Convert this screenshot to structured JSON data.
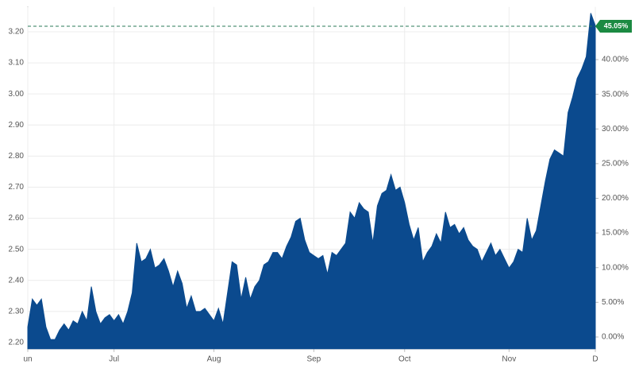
{
  "chart_data": {
    "type": "area",
    "categories": [
      "un",
      null,
      null,
      null,
      null,
      null,
      null,
      null,
      null,
      null,
      null,
      null,
      null,
      null,
      null,
      null,
      null,
      null,
      null,
      "Jul",
      null,
      null,
      null,
      null,
      null,
      null,
      null,
      null,
      null,
      null,
      null,
      null,
      null,
      null,
      null,
      null,
      null,
      null,
      null,
      null,
      null,
      "Aug",
      null,
      null,
      null,
      null,
      null,
      null,
      null,
      null,
      null,
      null,
      null,
      null,
      null,
      null,
      null,
      null,
      null,
      null,
      null,
      null,
      null,
      "Sep",
      null,
      null,
      null,
      null,
      null,
      null,
      null,
      null,
      null,
      null,
      null,
      null,
      null,
      null,
      null,
      null,
      null,
      null,
      null,
      "Oct",
      null,
      null,
      null,
      null,
      null,
      null,
      null,
      null,
      null,
      null,
      null,
      null,
      null,
      null,
      null,
      null,
      null,
      null,
      null,
      null,
      null,
      null,
      "Nov",
      null,
      null,
      null,
      null,
      null,
      null,
      null,
      null,
      null,
      null,
      null,
      null,
      null,
      null,
      null,
      null,
      null,
      null,
      "D"
    ],
    "values": [
      2.25,
      2.34,
      2.32,
      2.34,
      2.25,
      2.21,
      2.21,
      2.24,
      2.26,
      2.24,
      2.27,
      2.26,
      2.3,
      2.27,
      2.38,
      2.3,
      2.26,
      2.28,
      2.29,
      2.27,
      2.29,
      2.26,
      2.3,
      2.36,
      2.52,
      2.46,
      2.47,
      2.5,
      2.44,
      2.45,
      2.47,
      2.43,
      2.38,
      2.43,
      2.39,
      2.31,
      2.35,
      2.3,
      2.3,
      2.31,
      2.29,
      2.27,
      2.31,
      2.26,
      2.36,
      2.46,
      2.45,
      2.34,
      2.41,
      2.34,
      2.38,
      2.4,
      2.45,
      2.46,
      2.49,
      2.49,
      2.47,
      2.51,
      2.54,
      2.59,
      2.6,
      2.53,
      2.49,
      2.48,
      2.47,
      2.48,
      2.42,
      2.49,
      2.48,
      2.5,
      2.52,
      2.62,
      2.6,
      2.65,
      2.63,
      2.62,
      2.52,
      2.64,
      2.68,
      2.69,
      2.74,
      2.69,
      2.7,
      2.65,
      2.58,
      2.53,
      2.57,
      2.46,
      2.49,
      2.51,
      2.55,
      2.52,
      2.62,
      2.57,
      2.58,
      2.55,
      2.57,
      2.53,
      2.51,
      2.5,
      2.46,
      2.49,
      2.52,
      2.48,
      2.5,
      2.47,
      2.44,
      2.46,
      2.5,
      2.49,
      2.6,
      2.53,
      2.56,
      2.64,
      2.72,
      2.79,
      2.82,
      2.81,
      2.8,
      2.94,
      2.99,
      3.05,
      3.08,
      3.12,
      3.26,
      3.22
    ],
    "color": "#0b4a8e",
    "ylim": [
      2.18,
      3.28
    ],
    "yticks": [
      {
        "value": 2.2,
        "label": "2.20"
      },
      {
        "value": 2.3,
        "label": "2.30"
      },
      {
        "value": 2.4,
        "label": "2.40"
      },
      {
        "value": 2.5,
        "label": "2.50"
      },
      {
        "value": 2.6,
        "label": "2.60"
      },
      {
        "value": 2.7,
        "label": "2.70"
      },
      {
        "value": 2.8,
        "label": "2.80"
      },
      {
        "value": 2.9,
        "label": "2.90"
      },
      {
        "value": 3.0,
        "label": "3.00"
      },
      {
        "value": 3.1,
        "label": "3.10"
      },
      {
        "value": 3.2,
        "label": "3.20"
      }
    ],
    "y2lim": [
      -1.7,
      47.6
    ],
    "y2ticks": [
      {
        "value": 0,
        "label": "0.00%"
      },
      {
        "value": 5,
        "label": "5.00%"
      },
      {
        "value": 10,
        "label": "10.00%"
      },
      {
        "value": 15,
        "label": "15.00%"
      },
      {
        "value": 20,
        "label": "20.00%"
      },
      {
        "value": 25,
        "label": "25.00%"
      },
      {
        "value": 30,
        "label": "30.00%"
      },
      {
        "value": 35,
        "label": "35.00%"
      },
      {
        "value": 40,
        "label": "40.00%"
      }
    ],
    "reference": {
      "value": 3.218,
      "label": "45.05%",
      "color": "#1b8a42"
    },
    "grid": true
  }
}
